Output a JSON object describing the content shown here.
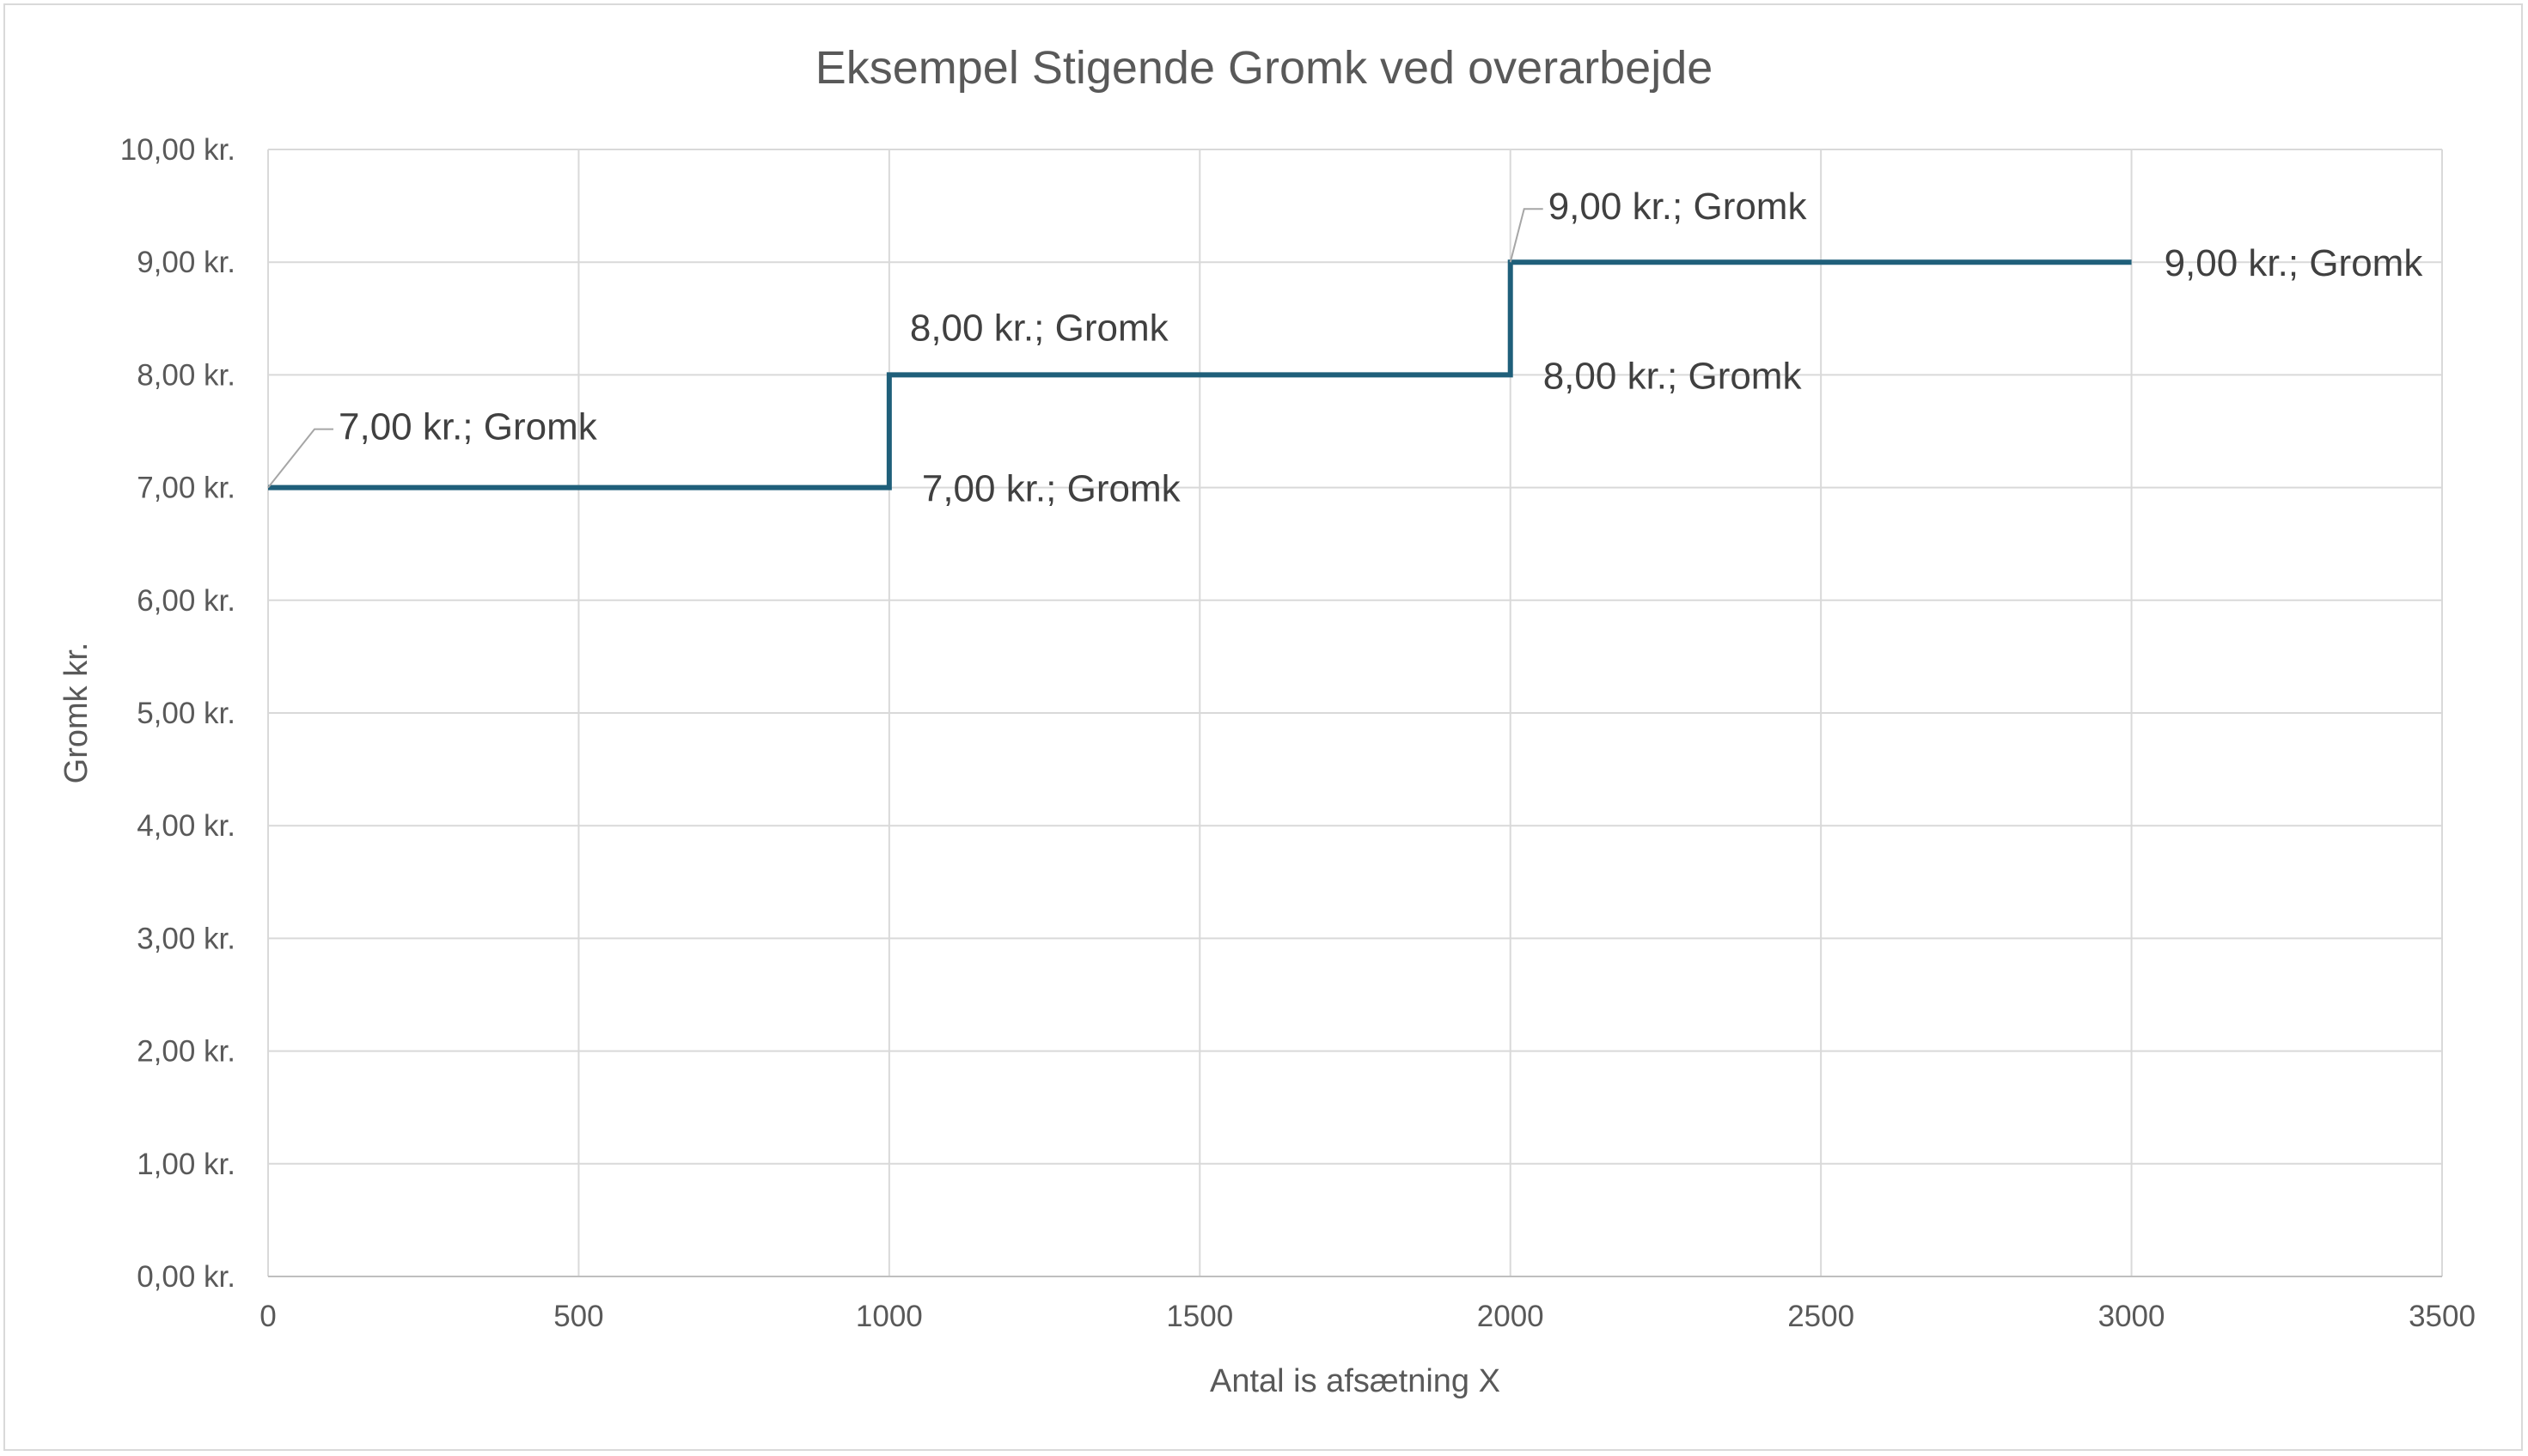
{
  "chart_data": {
    "type": "line",
    "title": "Eksempel Stigende Gromk ved overarbejde",
    "xlabel": "Antal is afsætning X",
    "ylabel": "Gromk kr.",
    "xlim": [
      0,
      3500
    ],
    "ylim": [
      0,
      10
    ],
    "x_ticks": [
      "0",
      "500",
      "1000",
      "1500",
      "2000",
      "2500",
      "3000",
      "3500"
    ],
    "y_ticks": [
      "0,00 kr.",
      "1,00 kr.",
      "2,00 kr.",
      "3,00 kr.",
      "4,00 kr.",
      "5,00 kr.",
      "6,00 kr.",
      "7,00 kr.",
      "8,00 kr.",
      "9,00 kr.",
      "10,00 kr."
    ],
    "grid": true,
    "legend": "none",
    "series": [
      {
        "color": "#1f5f7a",
        "points": [
          {
            "x": 0,
            "y": 7,
            "label": "7,00 kr.; Gromk"
          },
          {
            "x": 1000,
            "y": 7,
            "label": "7,00 kr.; Gromk"
          },
          {
            "x": 1000,
            "y": 8,
            "label": "8,00 kr.; Gromk"
          },
          {
            "x": 2000,
            "y": 8,
            "label": "8,00 kr.; Gromk"
          },
          {
            "x": 2000,
            "y": 9,
            "label": "9,00 kr.; Gromk"
          },
          {
            "x": 3000,
            "y": 9,
            "label": "9,00 kr.; Gromk"
          }
        ]
      }
    ]
  }
}
